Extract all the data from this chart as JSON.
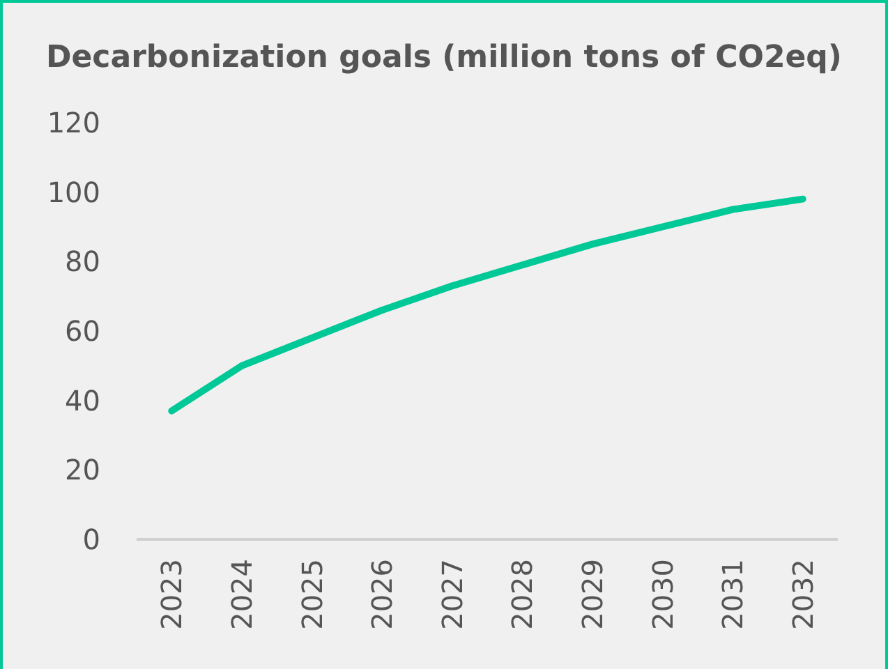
{
  "chart_data": {
    "type": "line",
    "title": "Decarbonization goals (million tons of CO2eq)",
    "categories": [
      "2023",
      "2024",
      "2025",
      "2026",
      "2027",
      "2028",
      "2029",
      "2030",
      "2031",
      "2032"
    ],
    "series": [
      {
        "color": "#00c896",
        "values": [
          37,
          50,
          58,
          66,
          73,
          79,
          85,
          90,
          95,
          98
        ]
      }
    ],
    "ylim": [
      0,
      120
    ],
    "yticks": [
      0,
      20,
      40,
      60,
      80,
      100,
      120
    ],
    "grid": false,
    "marker": "none",
    "line_style": "solid"
  }
}
